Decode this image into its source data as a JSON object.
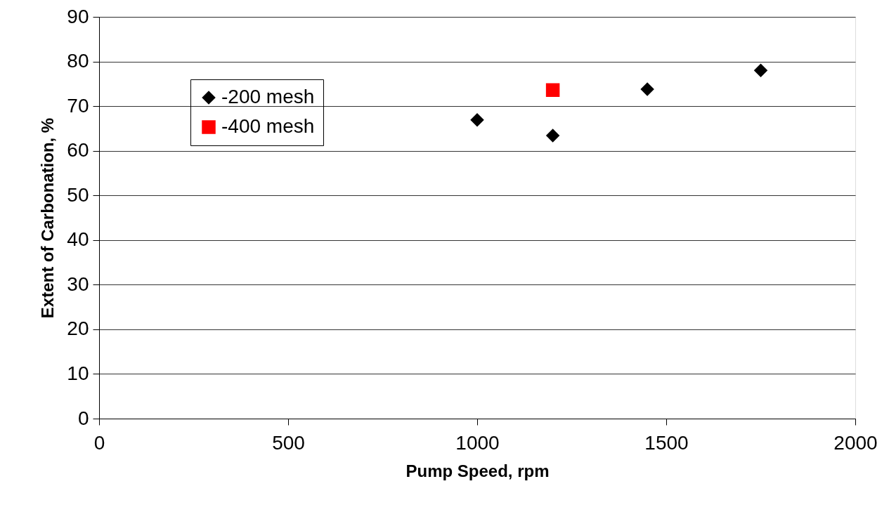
{
  "chart_data": {
    "type": "scatter",
    "xlabel": "Pump Speed, rpm",
    "ylabel": "Extent of Carbonation, %",
    "xlim": [
      0,
      2000
    ],
    "xticks": [
      0,
      500,
      1000,
      1500,
      2000
    ],
    "ylim": [
      0,
      90
    ],
    "yticks": [
      0,
      10,
      20,
      30,
      40,
      50,
      60,
      70,
      80,
      90
    ],
    "grid": "y",
    "legend": "top left",
    "series": [
      {
        "name": "-200 mesh",
        "color": "#000000",
        "marker": "diamond",
        "x": [
          1000,
          1200,
          1450,
          1750
        ],
        "values": [
          66.9,
          63.4,
          73.8,
          78.0
        ]
      },
      {
        "name": "-400 mesh",
        "color": "#ff0000",
        "marker": "square",
        "x": [
          1200
        ],
        "values": [
          73.6
        ]
      }
    ]
  }
}
